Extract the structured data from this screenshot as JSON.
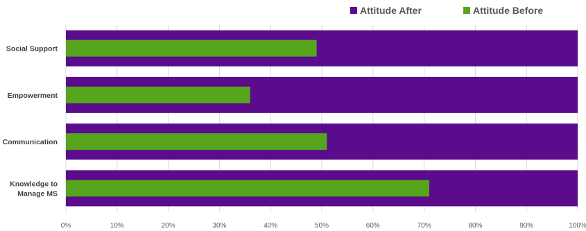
{
  "chart_data": {
    "type": "bar",
    "orientation": "horizontal",
    "categories": [
      [
        "Social Support"
      ],
      [
        "Empowerment"
      ],
      [
        "Communication"
      ],
      [
        "Knowledge to",
        "Manage MS"
      ]
    ],
    "series": [
      {
        "name": "Attitude After",
        "values": [
          100,
          100,
          100,
          100
        ],
        "color": "#5a0c8c"
      },
      {
        "name": "Attitude Before",
        "values": [
          49,
          36,
          51,
          71
        ],
        "color": "#56a51d"
      }
    ],
    "xlim": [
      0,
      100
    ],
    "xticks": [
      "0%",
      "10%",
      "20%",
      "30%",
      "40%",
      "50%",
      "60%",
      "70%",
      "80%",
      "90%",
      "100%"
    ],
    "grid": true,
    "legend_position": "top-right"
  }
}
